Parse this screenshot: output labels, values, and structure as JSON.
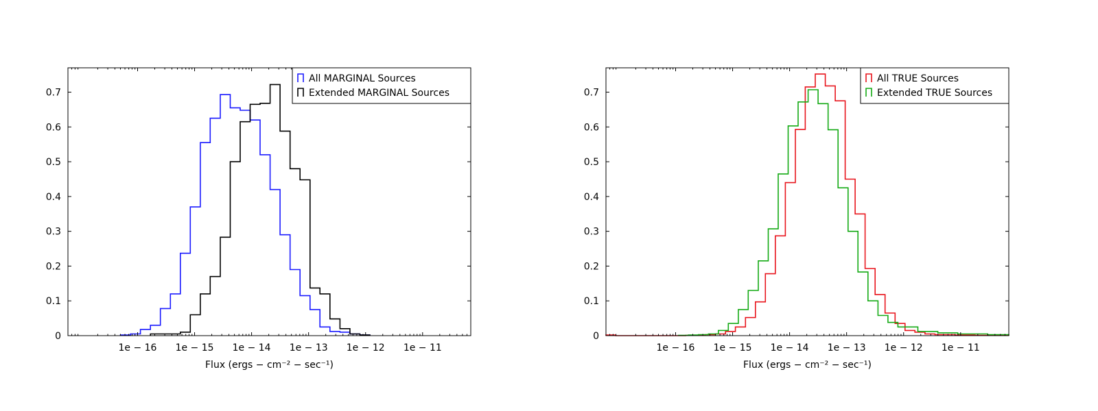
{
  "chart_data": [
    {
      "type": "step",
      "xlabel": "Flux (ergs − cm⁻² − sec⁻¹)",
      "x_scale": "log",
      "xlim": [
        6e-18,
        7e-11
      ],
      "ylim": [
        0,
        0.77
      ],
      "y_ticks": [
        0,
        0.1,
        0.2,
        0.3,
        0.4,
        0.5,
        0.6,
        0.7
      ],
      "y_tick_labels": [
        "0",
        "0.1",
        "0.2",
        "0.3",
        "0.4",
        "0.5",
        "0.6",
        "0.7"
      ],
      "x_ticks": [
        1e-16,
        1e-15,
        1e-14,
        1e-13,
        1e-12,
        1e-11
      ],
      "x_tick_labels": [
        "1e − 16",
        "1e − 15",
        "1e − 14",
        "1e − 13",
        "1e − 12",
        "1e − 11"
      ],
      "grid": false,
      "legend_position": "top-right",
      "series": [
        {
          "name": "All MARGINAL Sources",
          "color": "#1a1aff",
          "bin_edges": [
            5e-17,
            7.5e-17,
            1.12e-16,
            1.68e-16,
            2.51e-16,
            3.76e-16,
            5.62e-16,
            8.41e-16,
            1.26e-15,
            1.88e-15,
            2.82e-15,
            4.22e-15,
            6.31e-15,
            9.44e-15,
            1.41e-14,
            2.11e-14,
            3.16e-14,
            4.73e-14,
            7.08e-14,
            1.06e-13,
            1.58e-13,
            2.37e-13,
            3.55e-13,
            5.31e-13,
            7.94e-13,
            1.19e-12
          ],
          "counts": [
            0.002,
            0.005,
            0.018,
            0.03,
            0.078,
            0.12,
            0.237,
            0.37,
            0.555,
            0.625,
            0.693,
            0.655,
            0.648,
            0.62,
            0.52,
            0.42,
            0.29,
            0.19,
            0.115,
            0.075,
            0.025,
            0.012,
            0.01,
            0.005,
            0.002
          ]
        },
        {
          "name": "Extended MARGINAL Sources",
          "color": "#000000",
          "bin_edges": [
            1.68e-16,
            2.51e-16,
            3.76e-16,
            5.62e-16,
            8.41e-16,
            1.26e-15,
            1.88e-15,
            2.82e-15,
            4.22e-15,
            6.31e-15,
            9.44e-15,
            1.41e-14,
            2.11e-14,
            3.16e-14,
            4.73e-14,
            7.08e-14,
            1.06e-13,
            1.58e-13,
            2.37e-13,
            3.55e-13,
            5.31e-13,
            7.94e-13,
            1.19e-12
          ],
          "counts": [
            0.005,
            0.005,
            0.005,
            0.01,
            0.06,
            0.12,
            0.17,
            0.283,
            0.5,
            0.615,
            0.665,
            0.668,
            0.722,
            0.588,
            0.48,
            0.448,
            0.137,
            0.12,
            0.048,
            0.02,
            0.005,
            0.002
          ]
        }
      ]
    },
    {
      "type": "step",
      "xlabel": "Flux (ergs − cm⁻² − sec⁻¹)",
      "x_scale": "log",
      "xlim": [
        6e-18,
        7e-11
      ],
      "ylim": [
        0,
        0.77
      ],
      "y_ticks": [
        0,
        0.1,
        0.2,
        0.3,
        0.4,
        0.5,
        0.6,
        0.7
      ],
      "y_tick_labels": [
        "0",
        "0.1",
        "0.2",
        "0.3",
        "0.4",
        "0.5",
        "0.6",
        "0.7"
      ],
      "x_ticks": [
        1e-16,
        1e-15,
        1e-14,
        1e-13,
        1e-12,
        1e-11
      ],
      "x_tick_labels": [
        "1e − 16",
        "1e − 15",
        "1e − 14",
        "1e − 13",
        "1e − 12",
        "1e − 11"
      ],
      "grid": false,
      "legend_position": "top-right",
      "series": [
        {
          "name": "All TRUE Sources",
          "color": "#e8141c",
          "bin_edges": [
            6e-18,
            8.9e-18,
            1.33e-17,
            2e-17,
            2.98e-17,
            4.47e-17,
            6.68e-17,
            1e-16,
            1.5e-16,
            2.24e-16,
            3.35e-16,
            5e-16,
            7.5e-16,
            1.12e-15,
            1.68e-15,
            2.51e-15,
            3.76e-15,
            5.62e-15,
            8.41e-15,
            1.26e-14,
            1.88e-14,
            2.82e-14,
            4.22e-14,
            6.31e-14,
            9.44e-14,
            1.41e-13,
            2.11e-13,
            3.16e-13,
            4.73e-13,
            7.08e-13,
            1.06e-12,
            1.58e-12,
            2.37e-12,
            3.55e-12,
            5.31e-12,
            7.94e-12,
            1.19e-11,
            1.78e-11,
            2.66e-11,
            3.98e-11,
            7e-11
          ],
          "counts": [
            0.002,
            0.0,
            0.0,
            0.0,
            0.0,
            0.0,
            0.0,
            0.0,
            0.001,
            0.001,
            0.003,
            0.005,
            0.012,
            0.025,
            0.052,
            0.097,
            0.178,
            0.287,
            0.44,
            0.593,
            0.715,
            0.752,
            0.718,
            0.675,
            0.45,
            0.35,
            0.193,
            0.118,
            0.065,
            0.035,
            0.015,
            0.01,
            0.005,
            0.003,
            0.003,
            0.002,
            0.002,
            0.001,
            0.001,
            0.001
          ]
        },
        {
          "name": "Extended TRUE Sources",
          "color": "#14aa14",
          "bin_edges": [
            1.12e-16,
            1.68e-16,
            2.51e-16,
            3.76e-16,
            5.62e-16,
            8.41e-16,
            1.26e-15,
            1.88e-15,
            2.82e-15,
            4.22e-15,
            6.31e-15,
            9.44e-15,
            1.41e-14,
            2.11e-14,
            3.16e-14,
            4.73e-14,
            7.08e-14,
            1.06e-13,
            1.58e-13,
            2.37e-13,
            3.55e-13,
            5.31e-13,
            7.94e-13,
            1.19e-12,
            1.78e-12,
            2.66e-12,
            3.98e-12,
            5.96e-12,
            8.91e-12,
            1.33e-11,
            2e-11,
            2.98e-11,
            4.47e-11,
            7e-11
          ],
          "counts": [
            0.001,
            0.002,
            0.003,
            0.005,
            0.015,
            0.035,
            0.075,
            0.13,
            0.215,
            0.307,
            0.465,
            0.603,
            0.672,
            0.707,
            0.667,
            0.592,
            0.425,
            0.3,
            0.183,
            0.1,
            0.058,
            0.038,
            0.025,
            0.025,
            0.012,
            0.012,
            0.008,
            0.008,
            0.005,
            0.005,
            0.005,
            0.003,
            0.003
          ]
        }
      ]
    }
  ]
}
